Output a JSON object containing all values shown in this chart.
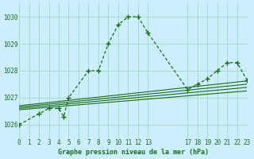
{
  "bg_color": "#cceeff",
  "grid_color": "#aaddcc",
  "line_color": "#1a6b1a",
  "title": "Graphe pression niveau de la mer (hPa)",
  "xlim": [
    0,
    23
  ],
  "ylim": [
    1025.5,
    1030.5
  ],
  "yticks": [
    1026,
    1027,
    1028,
    1029,
    1030
  ],
  "xtick_positions": [
    0,
    1,
    2,
    3,
    4,
    5,
    6,
    7,
    8,
    9,
    10,
    11,
    12,
    13,
    17,
    18,
    19,
    20,
    21,
    22,
    23
  ],
  "xtick_labels": [
    "0",
    "1",
    "2",
    "3",
    "4",
    "5",
    "6",
    "7",
    "8",
    "9",
    "10",
    "11",
    "12",
    "13",
    "17",
    "18",
    "19",
    "20",
    "21",
    "22",
    "23"
  ],
  "main_x": [
    0,
    2,
    3,
    3.5,
    4,
    4.5,
    5,
    7,
    8,
    9,
    10,
    11,
    12,
    13,
    17,
    18,
    19,
    20,
    21,
    22,
    23
  ],
  "main_y": [
    1026.0,
    1026.4,
    1026.6,
    1026.6,
    1026.6,
    1026.3,
    1027.0,
    1028.0,
    1028.0,
    1029.0,
    1029.7,
    1030.0,
    1030.0,
    1029.4,
    1027.3,
    1027.5,
    1027.7,
    1028.0,
    1028.3,
    1028.3,
    1027.65
  ],
  "ref_lines": [
    {
      "x": [
        0,
        23
      ],
      "y": [
        1026.55,
        1027.25
      ]
    },
    {
      "x": [
        0,
        23
      ],
      "y": [
        1026.6,
        1027.38
      ]
    },
    {
      "x": [
        0,
        23
      ],
      "y": [
        1026.65,
        1027.5
      ]
    },
    {
      "x": [
        0,
        23
      ],
      "y": [
        1026.7,
        1027.62
      ]
    }
  ],
  "marker_x": [
    0,
    2,
    3,
    4,
    4.5,
    5,
    7,
    8,
    9,
    10,
    11,
    12,
    13,
    17,
    18,
    19,
    20,
    21,
    22,
    23
  ],
  "marker_y": [
    1026.0,
    1026.4,
    1026.6,
    1026.6,
    1026.3,
    1027.0,
    1028.0,
    1028.0,
    1029.0,
    1029.7,
    1030.0,
    1030.0,
    1029.4,
    1027.3,
    1027.5,
    1027.7,
    1028.0,
    1028.3,
    1028.3,
    1027.65
  ]
}
